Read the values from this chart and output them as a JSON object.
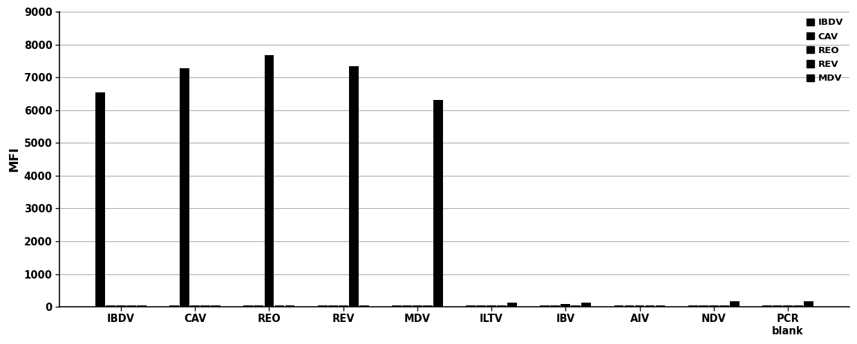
{
  "categories": [
    "IBDV",
    "CAV",
    "REO",
    "REV",
    "MDV",
    "ILTV",
    "IBV",
    "AIV",
    "NDV",
    "PCR\nblank"
  ],
  "series_labels": [
    "IBDV",
    "CAV",
    "REO",
    "REV",
    "MDV"
  ],
  "bar_color": "#000000",
  "ylabel": "MFI",
  "ylim": [
    0,
    9000
  ],
  "yticks": [
    0,
    1000,
    2000,
    3000,
    4000,
    5000,
    6000,
    7000,
    8000,
    9000
  ],
  "values": {
    "IBDV": [
      6550,
      50,
      50,
      50,
      50,
      50,
      50,
      50,
      50,
      50
    ],
    "CAV": [
      50,
      7280,
      50,
      50,
      50,
      50,
      50,
      50,
      50,
      50
    ],
    "REO": [
      50,
      50,
      7680,
      50,
      50,
      50,
      80,
      50,
      50,
      50
    ],
    "REV": [
      50,
      50,
      50,
      7340,
      50,
      50,
      50,
      50,
      50,
      50
    ],
    "MDV": [
      50,
      50,
      50,
      50,
      6300,
      130,
      130,
      50,
      160,
      160
    ]
  },
  "background_color": "#ffffff",
  "grid_color": "#888888",
  "figure_width": 12.4,
  "figure_height": 4.99,
  "dpi": 100
}
